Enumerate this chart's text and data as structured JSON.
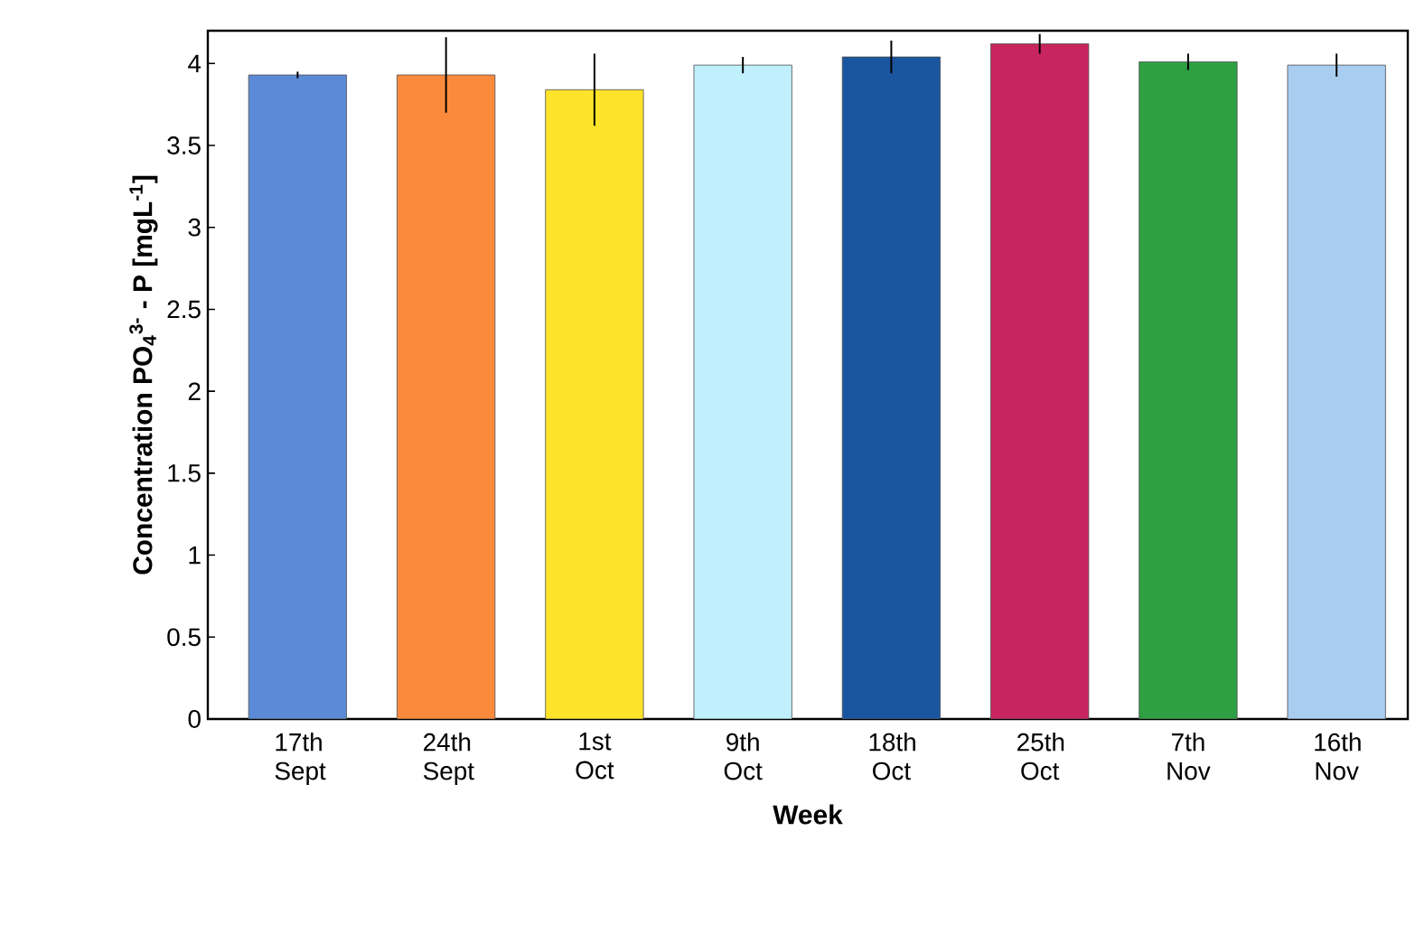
{
  "chart_data": {
    "type": "bar",
    "xlabel": "Week",
    "ylabel": "Concentration PO$_{4}$$^{3-}$ - P [mgL$^{-1}$]",
    "categories": [
      "17th Sept",
      "24th Sept",
      "1st Oct",
      "9th Oct",
      "18th Oct",
      "25th Oct",
      "7th Nov",
      "16th Nov"
    ],
    "values": [
      3.93,
      3.93,
      3.84,
      3.99,
      4.04,
      4.12,
      4.01,
      3.99
    ],
    "errors": [
      0.02,
      0.23,
      0.22,
      0.05,
      0.1,
      0.06,
      0.05,
      0.07
    ],
    "colors": [
      "#5b8bd6",
      "#fb8a3c",
      "#fde32a",
      "#c0f0fb",
      "#1a56a0",
      "#c8245e",
      "#2ea043",
      "#a9cdf0"
    ],
    "ylim": [
      0,
      4.2
    ],
    "yticks": [
      0,
      0.5,
      1,
      1.5,
      2,
      2.5,
      3,
      3.5,
      4
    ]
  }
}
